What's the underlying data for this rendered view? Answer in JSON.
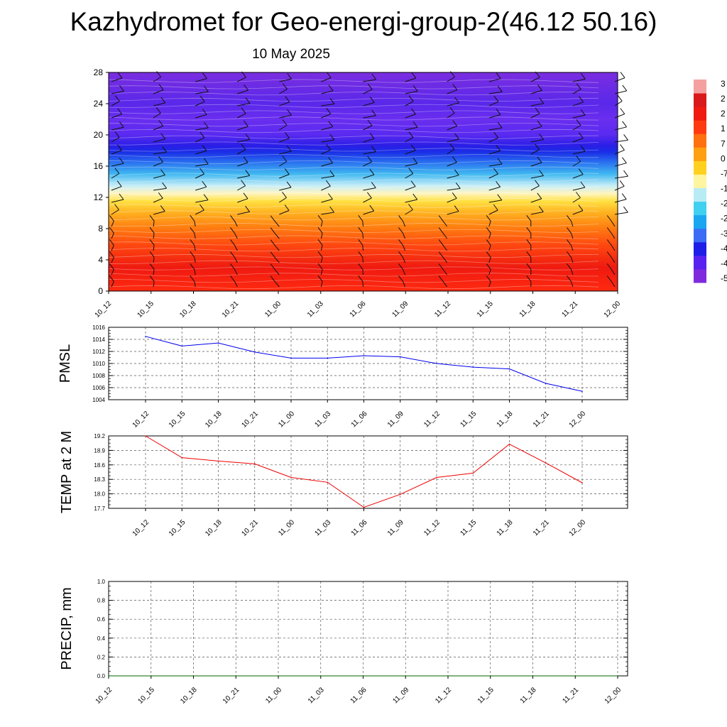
{
  "title": "Kazhydromet for Geo-energi-group-2(46.12 50.16)",
  "subtitle": "10 May 2025",
  "chart_data": [
    {
      "type": "heatmap",
      "name": "vertical cross-section temperature with wind barbs",
      "x": [
        "10_12",
        "10_15",
        "10_18",
        "10_21",
        "11_00",
        "11_03",
        "11_06",
        "11_09",
        "11_12",
        "11_15",
        "11_18",
        "11_21",
        "12_00"
      ],
      "yticks": [
        0,
        4,
        8,
        12,
        16,
        20,
        24,
        28
      ],
      "ylim": [
        0,
        28
      ],
      "colorbar_labels": [
        "3",
        "2",
        "2",
        "1",
        "7",
        "0",
        "-7",
        "-1",
        "-2",
        "-2",
        "-3",
        "-4",
        "-4",
        "-5"
      ],
      "colorscale": [
        "#7f2bdd",
        "#5a22f0",
        "#1e1ee6",
        "#3c6cf5",
        "#1aa6f0",
        "#40d0f0",
        "#b8ecf5",
        "#fff5a0",
        "#ffd020",
        "#ffa010",
        "#ff7010",
        "#ff3a10",
        "#ef1a10",
        "#d81a1a",
        "#f5a0a0"
      ],
      "values_description_levels": [
        {
          "level": 1,
          "value": 20
        },
        {
          "level": 4,
          "value": 19
        },
        {
          "level": 8,
          "value": 12
        },
        {
          "level": 12,
          "value": 2
        },
        {
          "level": 14,
          "value": -14
        },
        {
          "level": 16,
          "value": -30
        },
        {
          "level": 18,
          "value": -55
        },
        {
          "level": 20,
          "value": -50
        },
        {
          "level": 24,
          "value": -48
        },
        {
          "level": 28,
          "value": -45
        }
      ]
    },
    {
      "type": "line",
      "ylabel": "PMSL",
      "x": [
        "10_12",
        "10_15",
        "10_18",
        "10_21",
        "11_00",
        "11_03",
        "11_06",
        "11_09",
        "11_12",
        "11_15",
        "11_18",
        "11_21",
        "12_00"
      ],
      "series": [
        {
          "values": [
            1014.5,
            1012.9,
            1013.4,
            1011.9,
            1010.9,
            1010.9,
            1011.3,
            1011.1,
            1010.0,
            1009.4,
            1009.1,
            1006.7,
            1005.4
          ],
          "color": "#0000ee"
        }
      ],
      "ylim": [
        1004,
        1016
      ],
      "yticks": [
        "1004",
        "1006",
        "1008",
        "1010",
        "1012",
        "1014",
        "1016"
      ]
    },
    {
      "type": "line",
      "ylabel": "TEMP at 2 M",
      "x": [
        "10_12",
        "10_15",
        "10_18",
        "10_21",
        "11_00",
        "11_03",
        "11_06",
        "11_09",
        "11_12",
        "11_15",
        "11_18",
        "11_21",
        "12_00"
      ],
      "series": [
        {
          "values": [
            19.2,
            18.75,
            18.68,
            18.62,
            18.34,
            18.24,
            17.72,
            17.99,
            18.34,
            18.43,
            19.03,
            18.64,
            18.23
          ],
          "color": "#ee0000"
        }
      ],
      "ylim": [
        17.7,
        19.2
      ],
      "yticks": [
        "17.7",
        "18.0",
        "18.3",
        "18.6",
        "18.9",
        "19.2"
      ]
    },
    {
      "type": "line",
      "ylabel": "PRECIP, mm",
      "x": [
        "10_12",
        "10_15",
        "10_18",
        "10_21",
        "11_00",
        "11_03",
        "11_06",
        "11_09",
        "11_12",
        "11_15",
        "11_18",
        "11_21",
        "12_00"
      ],
      "series": [
        {
          "values": [
            0,
            0,
            0,
            0,
            0,
            0,
            0,
            0,
            0,
            0,
            0,
            0,
            0
          ],
          "color": "#006400"
        }
      ],
      "ylim": [
        0,
        1
      ],
      "yticks": [
        "0.0",
        "0.2",
        "0.4",
        "0.6",
        "0.8",
        "1.0"
      ]
    }
  ]
}
